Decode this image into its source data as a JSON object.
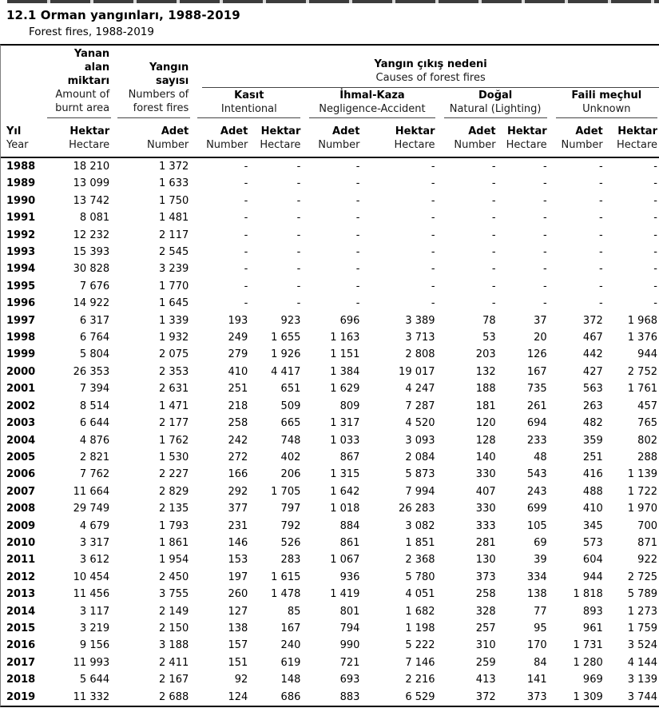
{
  "colors": {
    "text": "#000000",
    "background": "#ffffff",
    "rule": "#000000",
    "underline": "#444444",
    "top_strip": "#3c3c3c"
  },
  "page": {
    "title": "12.1 Orman yangınları, 1988-2019",
    "subtitle": "Forest fires, 1988-2019"
  },
  "table": {
    "header": {
      "year": {
        "tr": "Yıl",
        "en": "Year"
      },
      "burnt_area": {
        "tr": "Yanan\nalan\nmiktarı",
        "en": "Amount of\nburnt area"
      },
      "fire_count": {
        "tr": "Yangın\nsayısı",
        "en": "Numbers of\nforest fires"
      },
      "causes": {
        "tr": "Yangın çıkış nedeni",
        "en": "Causes of forest fires"
      },
      "groups": [
        {
          "tr": "Kasıt",
          "en": "Intentional"
        },
        {
          "tr": "İhmal-Kaza",
          "en": "Negligence-Accident"
        },
        {
          "tr": "Doğal",
          "en": "Natural (Lighting)"
        },
        {
          "tr": "Faili meçhul",
          "en": "Unknown"
        }
      ],
      "units": {
        "count_tr": "Adet",
        "count_en": "Number",
        "area_tr": "Hektar",
        "area_en": "Hectare"
      }
    },
    "rows": [
      {
        "year": "1988",
        "values": [
          "18 210",
          "1 372",
          "-",
          "-",
          "-",
          "-",
          "-",
          "-",
          "-",
          "-"
        ]
      },
      {
        "year": "1989",
        "values": [
          "13 099",
          "1 633",
          "-",
          "-",
          "-",
          "-",
          "-",
          "-",
          "-",
          "-"
        ]
      },
      {
        "year": "1990",
        "values": [
          "13 742",
          "1 750",
          "-",
          "-",
          "-",
          "-",
          "-",
          "-",
          "-",
          "-"
        ]
      },
      {
        "year": "1991",
        "values": [
          "8 081",
          "1 481",
          "-",
          "-",
          "-",
          "-",
          "-",
          "-",
          "-",
          "-"
        ]
      },
      {
        "year": "1992",
        "values": [
          "12 232",
          "2 117",
          "-",
          "-",
          "-",
          "-",
          "-",
          "-",
          "-",
          "-"
        ]
      },
      {
        "year": "1993",
        "values": [
          "15 393",
          "2 545",
          "-",
          "-",
          "-",
          "-",
          "-",
          "-",
          "-",
          "-"
        ]
      },
      {
        "year": "1994",
        "values": [
          "30 828",
          "3 239",
          "-",
          "-",
          "-",
          "-",
          "-",
          "-",
          "-",
          "-"
        ]
      },
      {
        "year": "1995",
        "values": [
          "7 676",
          "1 770",
          "-",
          "-",
          "-",
          "-",
          "-",
          "-",
          "-",
          "-"
        ]
      },
      {
        "year": "1996",
        "values": [
          "14 922",
          "1 645",
          "-",
          "-",
          "-",
          "-",
          "-",
          "-",
          "-",
          "-"
        ]
      },
      {
        "year": "1997",
        "values": [
          "6 317",
          "1 339",
          "193",
          "923",
          "696",
          "3 389",
          "78",
          "37",
          "372",
          "1 968"
        ]
      },
      {
        "year": "1998",
        "values": [
          "6 764",
          "1 932",
          "249",
          "1 655",
          "1 163",
          "3 713",
          "53",
          "20",
          "467",
          "1 376"
        ]
      },
      {
        "year": "1999",
        "values": [
          "5 804",
          "2 075",
          "279",
          "1 926",
          "1 151",
          "2 808",
          "203",
          "126",
          "442",
          "944"
        ]
      },
      {
        "year": "2000",
        "values": [
          "26 353",
          "2 353",
          "410",
          "4 417",
          "1 384",
          "19 017",
          "132",
          "167",
          "427",
          "2 752"
        ]
      },
      {
        "year": "2001",
        "values": [
          "7 394",
          "2 631",
          "251",
          "651",
          "1 629",
          "4 247",
          "188",
          "735",
          "563",
          "1 761"
        ]
      },
      {
        "year": "2002",
        "values": [
          "8 514",
          "1 471",
          "218",
          "509",
          "809",
          "7 287",
          "181",
          "261",
          "263",
          "457"
        ]
      },
      {
        "year": "2003",
        "values": [
          "6 644",
          "2 177",
          "258",
          "665",
          "1 317",
          "4 520",
          "120",
          "694",
          "482",
          "765"
        ]
      },
      {
        "year": "2004",
        "values": [
          "4 876",
          "1 762",
          "242",
          "748",
          "1 033",
          "3 093",
          "128",
          "233",
          "359",
          "802"
        ]
      },
      {
        "year": "2005",
        "values": [
          "2 821",
          "1 530",
          "272",
          "402",
          "867",
          "2 084",
          "140",
          "48",
          "251",
          "288"
        ]
      },
      {
        "year": "2006",
        "values": [
          "7 762",
          "2 227",
          "166",
          "206",
          "1 315",
          "5 873",
          "330",
          "543",
          "416",
          "1 139"
        ]
      },
      {
        "year": "2007",
        "values": [
          "11 664",
          "2 829",
          "292",
          "1 705",
          "1 642",
          "7 994",
          "407",
          "243",
          "488",
          "1 722"
        ]
      },
      {
        "year": "2008",
        "values": [
          "29 749",
          "2 135",
          "377",
          "797",
          "1 018",
          "26 283",
          "330",
          "699",
          "410",
          "1 970"
        ]
      },
      {
        "year": "2009",
        "values": [
          "4 679",
          "1 793",
          "231",
          "792",
          "884",
          "3 082",
          "333",
          "105",
          "345",
          "700"
        ]
      },
      {
        "year": "2010",
        "values": [
          "3 317",
          "1 861",
          "146",
          "526",
          "861",
          "1 851",
          "281",
          "69",
          "573",
          "871"
        ]
      },
      {
        "year": "2011",
        "values": [
          "3 612",
          "1 954",
          "153",
          "283",
          "1 067",
          "2 368",
          "130",
          "39",
          "604",
          "922"
        ]
      },
      {
        "year": "2012",
        "values": [
          "10 454",
          "2 450",
          "197",
          "1 615",
          "936",
          "5 780",
          "373",
          "334",
          "944",
          "2 725"
        ]
      },
      {
        "year": "2013",
        "values": [
          "11 456",
          "3 755",
          "260",
          "1 478",
          "1 419",
          "4 051",
          "258",
          "138",
          "1 818",
          "5 789"
        ]
      },
      {
        "year": "2014",
        "values": [
          "3 117",
          "2 149",
          "127",
          "85",
          "801",
          "1 682",
          "328",
          "77",
          "893",
          "1 273"
        ]
      },
      {
        "year": "2015",
        "values": [
          "3 219",
          "2 150",
          "138",
          "167",
          "794",
          "1 198",
          "257",
          "95",
          "961",
          "1 759"
        ]
      },
      {
        "year": "2016",
        "values": [
          "9 156",
          "3 188",
          "157",
          "240",
          "990",
          "5 222",
          "310",
          "170",
          "1 731",
          "3 524"
        ]
      },
      {
        "year": "2017",
        "values": [
          "11 993",
          "2 411",
          "151",
          "619",
          "721",
          "7 146",
          "259",
          "84",
          "1 280",
          "4 144"
        ]
      },
      {
        "year": "2018",
        "values": [
          "5 644",
          "2 167",
          "92",
          "148",
          "693",
          "2 216",
          "413",
          "141",
          "969",
          "3 139"
        ]
      },
      {
        "year": "2019",
        "values": [
          "11 332",
          "2 688",
          "124",
          "686",
          "883",
          "6 529",
          "372",
          "373",
          "1 309",
          "3 744"
        ]
      }
    ]
  }
}
